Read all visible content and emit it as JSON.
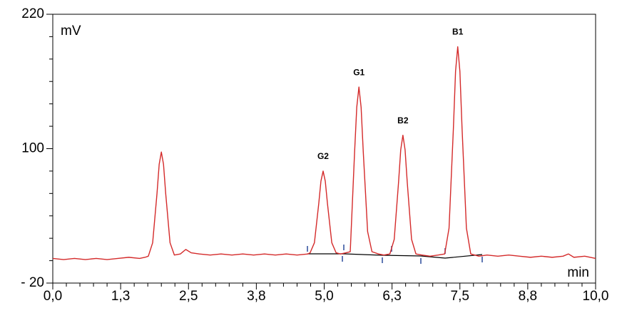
{
  "chart_data": {
    "type": "line",
    "y_label": "mV",
    "x_label": "min",
    "xlim": [
      0,
      10
    ],
    "ylim": [
      -20,
      220
    ],
    "xticks": [
      {
        "value": 0,
        "label": "0,0"
      },
      {
        "value": 1.25,
        "label": "1,3"
      },
      {
        "value": 2.5,
        "label": "2,5"
      },
      {
        "value": 3.75,
        "label": "3,8"
      },
      {
        "value": 5,
        "label": "5,0"
      },
      {
        "value": 6.25,
        "label": "6,3"
      },
      {
        "value": 7.5,
        "label": "7,5"
      },
      {
        "value": 8.75,
        "label": "8,8"
      },
      {
        "value": 10,
        "label": "10,0"
      }
    ],
    "xminorticks": [
      0.25,
      0.5,
      0.75,
      1,
      1.5,
      1.75,
      2,
      2.25,
      2.75,
      3,
      3.25,
      3.5,
      4,
      4.25,
      4.5,
      4.75,
      5.25,
      5.5,
      5.75,
      6,
      6.5,
      6.75,
      7,
      7.25,
      7.75,
      8,
      8.25,
      8.5,
      9,
      9.25,
      9.5,
      9.75
    ],
    "yticks": [
      {
        "value": -20,
        "label": "- 20"
      },
      100,
      220
    ],
    "yminorticks": [
      0,
      20,
      40,
      60,
      80,
      120,
      140,
      160,
      180,
      200
    ],
    "x": [
      0,
      0.2,
      0.4,
      0.6,
      0.8,
      1.0,
      1.2,
      1.4,
      1.6,
      1.7,
      1.76,
      1.84,
      1.92,
      1.96,
      2.0,
      2.04,
      2.08,
      2.16,
      2.24,
      2.35,
      2.45,
      2.55,
      2.7,
      2.9,
      3.1,
      3.3,
      3.5,
      3.7,
      3.9,
      4.1,
      4.3,
      4.5,
      4.7,
      4.74,
      4.82,
      4.9,
      4.94,
      4.98,
      5.02,
      5.06,
      5.14,
      5.22,
      5.3,
      5.4,
      5.48,
      5.56,
      5.6,
      5.64,
      5.68,
      5.72,
      5.8,
      5.88,
      6.0,
      6.1,
      6.21,
      6.29,
      6.37,
      6.41,
      6.45,
      6.49,
      6.53,
      6.61,
      6.69,
      6.8,
      6.95,
      7.1,
      7.22,
      7.3,
      7.38,
      7.42,
      7.46,
      7.5,
      7.54,
      7.62,
      7.7,
      7.85,
      8.0,
      8.2,
      8.4,
      8.6,
      8.8,
      9.0,
      9.2,
      9.4,
      9.5,
      9.6,
      9.8,
      10.0
    ],
    "series": [
      {
        "color": "#d42a2a",
        "values": [
          2,
          1,
          2,
          1,
          2,
          1,
          2,
          3,
          2,
          3,
          4,
          16,
          60,
          86,
          97,
          86,
          60,
          16,
          5,
          6,
          10,
          7,
          6,
          5,
          6,
          5,
          6,
          5,
          6,
          5,
          6,
          5,
          6,
          7,
          16,
          51,
          71,
          80,
          71,
          51,
          16,
          7,
          6,
          7,
          8,
          97,
          137,
          155,
          137,
          97,
          26,
          8,
          6,
          5,
          6,
          19,
          70,
          99,
          112,
          99,
          70,
          19,
          6,
          5,
          4,
          5,
          6,
          29,
          118,
          169,
          191,
          169,
          118,
          29,
          6,
          4,
          5,
          4,
          5,
          4,
          3,
          4,
          3,
          4,
          6,
          3,
          4,
          2
        ]
      }
    ],
    "annotations": [
      {
        "text": "G2",
        "x": 4.98,
        "y": 80
      },
      {
        "text": "G1",
        "x": 5.64,
        "y": 155
      },
      {
        "text": "B2",
        "x": 6.45,
        "y": 112
      },
      {
        "text": "B1",
        "x": 7.46,
        "y": 191
      }
    ]
  }
}
